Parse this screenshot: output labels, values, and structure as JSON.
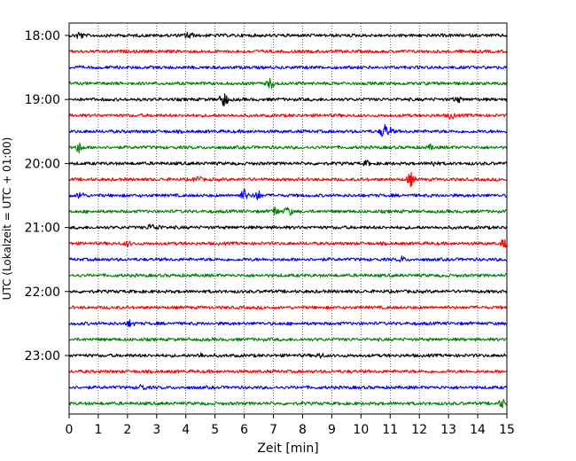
{
  "chart_data": {
    "type": "line",
    "title": "",
    "xlabel": "Zeit  [min]",
    "ylabel": "UTC (Lokalzeit = UTC + 01:00)",
    "xlim": [
      0,
      15
    ],
    "x_ticks": [
      "0",
      "1",
      "2",
      "3",
      "4",
      "5",
      "6",
      "7",
      "8",
      "9",
      "10",
      "11",
      "12",
      "13",
      "14",
      "15"
    ],
    "y_tick_labels": [
      "18:00",
      "19:00",
      "20:00",
      "21:00",
      "22:00",
      "23:00"
    ],
    "y_tick_rows": [
      0,
      4,
      8,
      12,
      16,
      20
    ],
    "vertical_grid": "dotted",
    "row_interval_minutes": 15,
    "row_start": "18:00",
    "row_end": "23:45",
    "row_color_cycle": [
      "#000000",
      "#ff0000",
      "#0000ff",
      "#008000"
    ],
    "rows": [
      {
        "time": "18:00",
        "events": [
          [
            0.35,
            5
          ],
          [
            4.1,
            5
          ]
        ]
      },
      {
        "time": "18:15",
        "events": []
      },
      {
        "time": "18:30",
        "events": []
      },
      {
        "time": "18:45",
        "events": [
          [
            6.9,
            6
          ]
        ]
      },
      {
        "time": "19:00",
        "events": [
          [
            5.3,
            9
          ],
          [
            13.3,
            4
          ]
        ]
      },
      {
        "time": "19:15",
        "events": [
          [
            13.1,
            4
          ]
        ]
      },
      {
        "time": "19:30",
        "events": [
          [
            10.8,
            9
          ],
          [
            11.0,
            4
          ]
        ]
      },
      {
        "time": "19:45",
        "events": [
          [
            0.35,
            6
          ],
          [
            12.4,
            3
          ]
        ]
      },
      {
        "time": "20:00",
        "events": [
          [
            10.2,
            3
          ],
          [
            12.5,
            3
          ]
        ]
      },
      {
        "time": "20:15",
        "events": [
          [
            4.4,
            4
          ],
          [
            11.7,
            8
          ]
        ]
      },
      {
        "time": "20:30",
        "events": [
          [
            0.4,
            5
          ],
          [
            6.0,
            7
          ],
          [
            6.45,
            6
          ]
        ]
      },
      {
        "time": "20:45",
        "events": [
          [
            7.05,
            5
          ],
          [
            7.5,
            6
          ]
        ]
      },
      {
        "time": "21:00",
        "events": [
          [
            2.8,
            4
          ],
          [
            3.05,
            3
          ]
        ]
      },
      {
        "time": "21:15",
        "events": [
          [
            2.0,
            3
          ],
          [
            14.9,
            5
          ]
        ]
      },
      {
        "time": "21:30",
        "events": [
          [
            11.4,
            3
          ]
        ]
      },
      {
        "time": "21:45",
        "events": []
      },
      {
        "time": "22:00",
        "events": []
      },
      {
        "time": "22:15",
        "events": []
      },
      {
        "time": "22:30",
        "events": [
          [
            2.1,
            4
          ]
        ]
      },
      {
        "time": "22:45",
        "events": []
      },
      {
        "time": "23:00",
        "events": [
          [
            4.5,
            3
          ],
          [
            8.6,
            3
          ]
        ]
      },
      {
        "time": "23:15",
        "events": []
      },
      {
        "time": "23:30",
        "events": [
          [
            2.5,
            4
          ]
        ]
      },
      {
        "time": "23:45",
        "events": [
          [
            14.85,
            5
          ]
        ]
      }
    ]
  }
}
